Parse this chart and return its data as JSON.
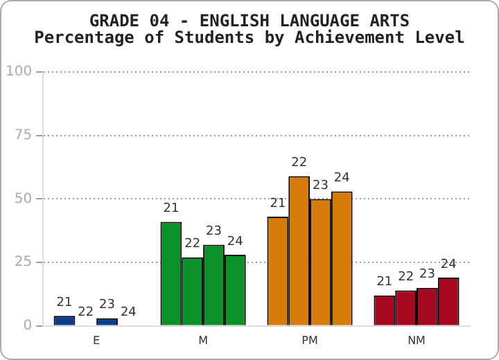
{
  "chart_data": {
    "type": "bar",
    "title": "GRADE 04 - ENGLISH LANGUAGE ARTS",
    "subtitle": "Percentage of Students by Achievement Level",
    "categories": [
      "E",
      "M",
      "PM",
      "NM"
    ],
    "series": [
      {
        "name": "21",
        "colors": [
          "#0a3d8c",
          "#0a9128",
          "#d77b08",
          "#a5081f"
        ],
        "values": [
          4,
          41,
          43,
          12
        ]
      },
      {
        "name": "22",
        "colors": [
          "#0a3d8c",
          "#0a9128",
          "#d77b08",
          "#a5081f"
        ],
        "values": [
          0,
          27,
          59,
          14
        ]
      },
      {
        "name": "23",
        "colors": [
          "#0a3d8c",
          "#0a9128",
          "#d77b08",
          "#a5081f"
        ],
        "values": [
          3,
          32,
          50,
          15
        ]
      },
      {
        "name": "24",
        "colors": [
          "#0a3d8c",
          "#0a9128",
          "#d77b08",
          "#a5081f"
        ],
        "values": [
          0,
          28,
          53,
          19
        ]
      }
    ],
    "ylim": [
      0,
      100
    ],
    "yticks": [
      0,
      25,
      50,
      75,
      100
    ],
    "grid": "y",
    "legend": false
  }
}
